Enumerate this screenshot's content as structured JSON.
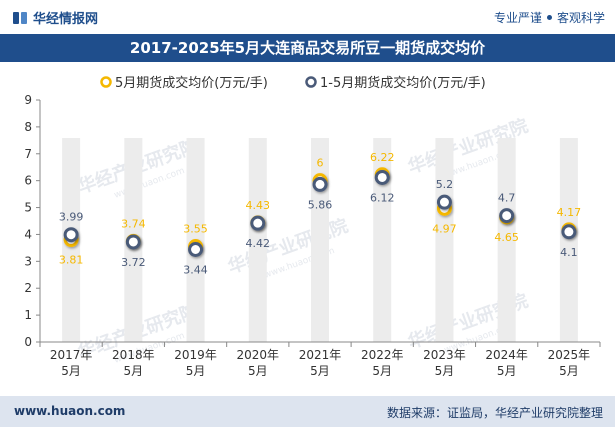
{
  "header": {
    "brand": "华经情报网",
    "slogan_left": "专业严谨",
    "slogan_right": "客观科学"
  },
  "title": "2017-2025年5月大连商品交易所豆一期货成交均价",
  "footer": {
    "site": "www.huaon.com",
    "source": "数据来源：证监局，华经产业研究院整理"
  },
  "watermark": "华经产业研究院",
  "watermark_url": "www.huaon.com",
  "colors": {
    "series1": "#f5b800",
    "series2": "#4a5a78",
    "bar": "#ececec",
    "header_bg": "#1f4e8c"
  },
  "chart_data": {
    "type": "line",
    "categories": [
      "2017年5月",
      "2018年5月",
      "2019年5月",
      "2020年5月",
      "2021年5月",
      "2022年5月",
      "2023年5月",
      "2024年5月",
      "2025年5月"
    ],
    "category_lines": [
      [
        "2017年",
        "5月"
      ],
      [
        "2018年",
        "5月"
      ],
      [
        "2019年",
        "5月"
      ],
      [
        "2020年",
        "5月"
      ],
      [
        "2021年",
        "5月"
      ],
      [
        "2022年",
        "5月"
      ],
      [
        "2023年",
        "5月"
      ],
      [
        "2024年",
        "5月"
      ],
      [
        "2025年",
        "5月"
      ]
    ],
    "series": [
      {
        "name": "5月期货成交均价(万元/手)",
        "values": [
          3.81,
          3.74,
          3.55,
          4.43,
          6,
          6.22,
          4.97,
          4.65,
          4.17
        ]
      },
      {
        "name": "1-5月期货成交均价(万元/手)",
        "values": [
          3.99,
          3.72,
          3.44,
          4.42,
          5.86,
          6.12,
          5.2,
          4.7,
          4.1
        ]
      }
    ],
    "ylim": [
      0,
      9
    ],
    "yticks": [
      0,
      1,
      2,
      3,
      4,
      5,
      6,
      7,
      8,
      9
    ],
    "legend": "top",
    "grid": false
  }
}
